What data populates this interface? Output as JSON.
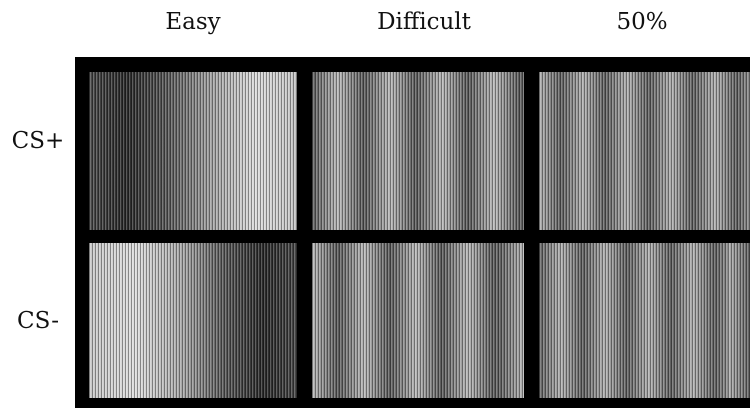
{
  "columns": [
    "Easy",
    "Difficult",
    "50%"
  ],
  "rows": [
    "CS+",
    "CS-"
  ]
}
